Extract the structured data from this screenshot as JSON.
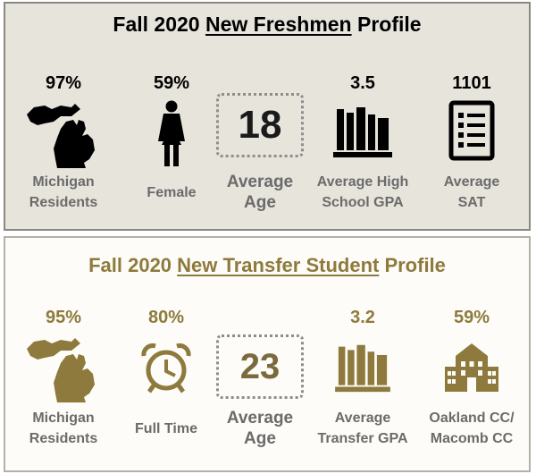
{
  "freshmen": {
    "title_prefix": "Fall 2020 ",
    "title_underlined": "New Freshmen",
    "title_suffix": " Profile",
    "stats": [
      {
        "value": "97%",
        "label_line1": "Michigan",
        "label_line2": "Residents",
        "icon": "michigan-map-icon"
      },
      {
        "value": "59%",
        "label_line1": "Female",
        "label_line2": "",
        "icon": "female-person-icon"
      },
      {
        "value": "18",
        "label_line1": "Average",
        "label_line2": "Age",
        "icon": "dotted-box"
      },
      {
        "value": "3.5",
        "label_line1": "Average High",
        "label_line2": "School GPA",
        "icon": "books-icon"
      },
      {
        "value": "1101",
        "label_line1": "Average",
        "label_line2": "SAT",
        "icon": "checklist-icon"
      }
    ]
  },
  "transfer": {
    "title_prefix": "Fall 2020 ",
    "title_underlined": "New Transfer Student",
    "title_suffix": " Profile",
    "stats": [
      {
        "value": "95%",
        "label_line1": "Michigan",
        "label_line2": "Residents",
        "icon": "michigan-map-icon"
      },
      {
        "value": "80%",
        "label_line1": "Full Time",
        "label_line2": "",
        "icon": "alarm-clock-icon"
      },
      {
        "value": "23",
        "label_line1": "Average",
        "label_line2": "Age",
        "icon": "dotted-box"
      },
      {
        "value": "3.2",
        "label_line1": "Average",
        "label_line2": "Transfer GPA",
        "icon": "books-icon"
      },
      {
        "value": "59%",
        "label_line1": "Oakland CC/",
        "label_line2": "Macomb CC",
        "icon": "school-building-icon"
      }
    ]
  },
  "colors": {
    "freshmen_text": "#000000",
    "transfer_accent": "#8e7a3c",
    "label_gray": "#6b6b6b",
    "freshmen_bg": "#e7e4dc"
  }
}
